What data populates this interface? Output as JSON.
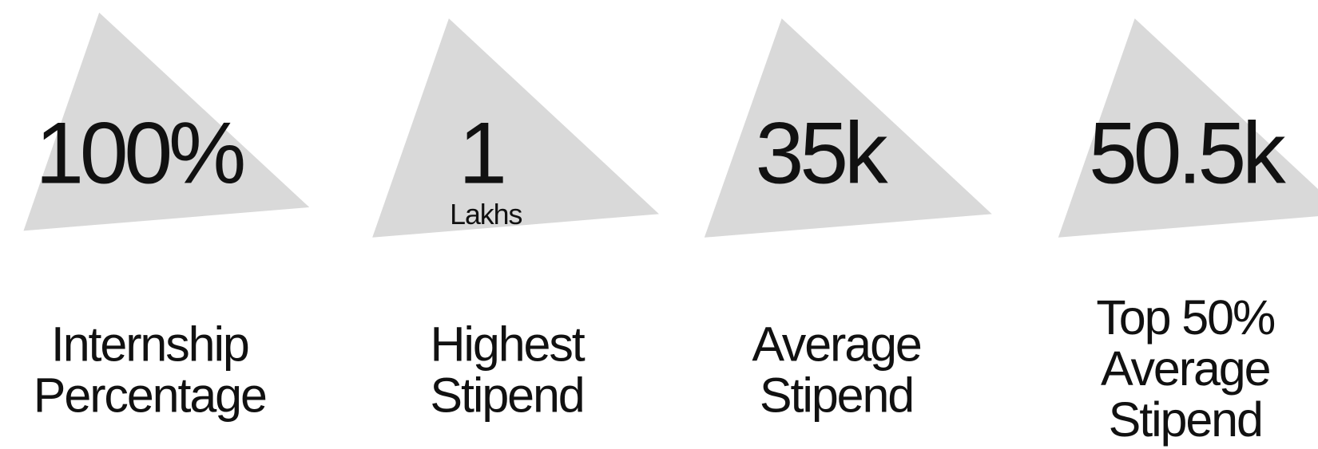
{
  "stats": [
    {
      "value": "100%",
      "label": [
        "Internship",
        "Percentage"
      ]
    },
    {
      "value": "1",
      "unit": "Lakhs",
      "label": [
        "Highest",
        "Stipend"
      ]
    },
    {
      "value": "35k",
      "label": [
        "Average",
        "Stipend"
      ]
    },
    {
      "value": "50.5k",
      "label": [
        "Top 50%",
        "Average",
        "Stipend"
      ]
    }
  ]
}
